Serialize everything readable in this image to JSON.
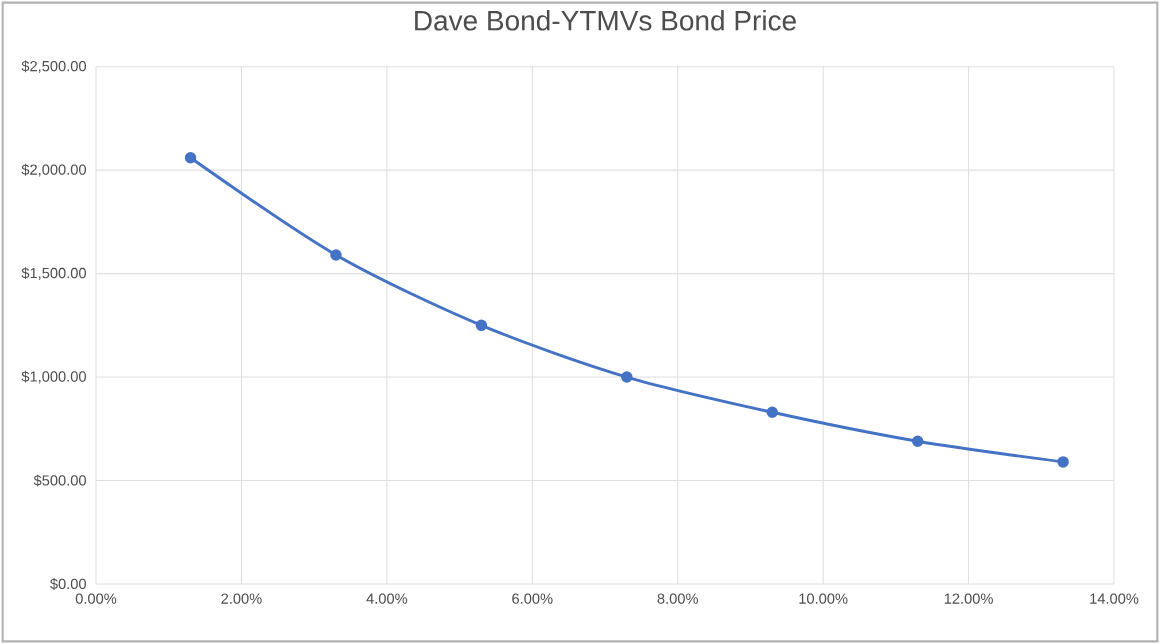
{
  "chart_data": {
    "type": "line",
    "title": "Dave Bond-YTMVs Bond Price",
    "x": [
      1.3,
      3.3,
      5.3,
      7.3,
      9.3,
      11.3,
      13.3
    ],
    "series": [
      {
        "color": "#4472c4",
        "values": [
          2060,
          1590,
          1250,
          1000,
          830,
          690,
          590
        ]
      }
    ],
    "xlim": [
      0,
      14
    ],
    "ylim": [
      0,
      2500
    ],
    "xticks": [
      {
        "value": 0,
        "label": "0.00%"
      },
      {
        "value": 2,
        "label": "2.00%"
      },
      {
        "value": 4,
        "label": "4.00%"
      },
      {
        "value": 6,
        "label": "6.00%"
      },
      {
        "value": 8,
        "label": "8.00%"
      },
      {
        "value": 10,
        "label": "10.00%"
      },
      {
        "value": 12,
        "label": "12.00%"
      },
      {
        "value": 14,
        "label": "14.00%"
      }
    ],
    "yticks": [
      {
        "value": 0,
        "label": "$0.00"
      },
      {
        "value": 500,
        "label": "$500.00"
      },
      {
        "value": 1000,
        "label": "$1,000.00"
      },
      {
        "value": 1500,
        "label": "$1,500.00"
      },
      {
        "value": 2000,
        "label": "$2,000.00"
      },
      {
        "value": 2500,
        "label": "$2,500.00"
      }
    ],
    "grid": true,
    "marker": "circle",
    "line_style": "solid"
  }
}
